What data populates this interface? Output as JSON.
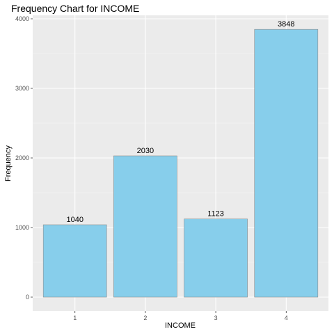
{
  "chart_data": {
    "type": "bar",
    "title": "Frequency Chart for INCOME",
    "xlabel": "INCOME",
    "ylabel": "Frequency",
    "categories": [
      "1",
      "2",
      "3",
      "4"
    ],
    "values": [
      1040,
      2030,
      1123,
      3848
    ],
    "y_ticks": [
      0,
      1000,
      2000,
      3000,
      4000
    ],
    "ylim": [
      -200,
      4050
    ],
    "grid": true,
    "legend": "none",
    "colors": {
      "bar_fill": "#87CEEB",
      "bar_stroke": "#8c8c8c",
      "panel_background": "#EBEBEB",
      "grid_major": "#FFFFFF",
      "grid_minor": "#F5F5F5",
      "tick_color": "#333333"
    }
  }
}
